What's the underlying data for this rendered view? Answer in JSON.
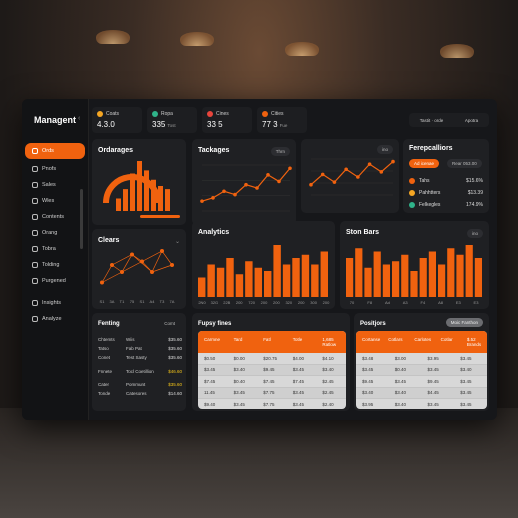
{
  "app": {
    "brand": "Managent"
  },
  "sidebar": {
    "items": [
      {
        "label": "Ords",
        "active": true
      },
      {
        "label": "Pnofs"
      },
      {
        "label": "Sales"
      },
      {
        "label": "Wles"
      },
      {
        "label": "Contents"
      },
      {
        "label": "Orang"
      },
      {
        "label": "Tobra"
      },
      {
        "label": "Tolding"
      },
      {
        "label": "Purgened"
      },
      {
        "label": "Insights"
      },
      {
        "label": "Analyze"
      }
    ]
  },
  "stats": [
    {
      "label": "Coats",
      "value": "4.3.0",
      "sub": "",
      "color": "#f5a623"
    },
    {
      "label": "Ropa",
      "value": "335",
      "sub": "Tost",
      "color": "#2fb38a"
    },
    {
      "label": "Cines",
      "value": "33 5",
      "sub": "",
      "color": "#e8453c"
    },
    {
      "label": "Cities",
      "value": "77 3",
      "sub": "Fue",
      "color": "#f0620f"
    }
  ],
  "user": {
    "left": "Tastit · orde",
    "right": "Apotra"
  },
  "cards": {
    "orderages": {
      "title": "Ordarages"
    },
    "trackages": {
      "title": "Tackages",
      "pill": "Thrn"
    },
    "chart3": {
      "pill": "ino"
    },
    "forecasts": {
      "title": "Ferepcalliors",
      "btn_primary": "Ad icenae",
      "btn_secondary": "Rear 053.00",
      "rows": [
        {
          "label": "Tahs",
          "value": "$15.6%",
          "color": "#f0620f"
        },
        {
          "label": "Pahhtters",
          "value": "$13.39",
          "color": "#f5a623"
        },
        {
          "label": "Felkegles",
          "value": "174.9%",
          "color": "#2fb38a"
        }
      ]
    },
    "clears": {
      "title": "Clears",
      "axis": [
        "S1",
        "3A",
        "T1",
        "75",
        "S1",
        "A4",
        "T3",
        "7A"
      ]
    },
    "analytics": {
      "title": "Analytics",
      "axis": [
        "2N0",
        "32G",
        "22B",
        "200",
        "720",
        "200",
        "200",
        "320",
        "200",
        "300",
        "200"
      ]
    },
    "stonbars": {
      "title": "Ston Bars",
      "pill": "ino",
      "axis": [
        "70",
        "F8",
        "Ad",
        "A3",
        "F4",
        "A8",
        "E3",
        "E3"
      ]
    },
    "fenting": {
      "title": "Fenting",
      "pill": "Comt",
      "rows": [
        [
          "Chtemts",
          "Wiis",
          "$35.60"
        ],
        [
          "Tatso",
          "Fab Pat",
          "$35.60"
        ],
        [
          "Conet",
          "Test Sasty",
          "$35.60"
        ],
        [
          "Fnnete",
          "Tocl Coetillion",
          "$46.60"
        ],
        [
          "Cater",
          "Pommunt",
          "$35.60"
        ],
        [
          "Tonde",
          "Catesores",
          "$14.60"
        ]
      ]
    },
    "fupsy": {
      "title": "Fupsy fines",
      "head": [
        "Carmne",
        "Tard",
        "Fatl",
        "Totle",
        "1,685 Ratlow"
      ],
      "rows": [
        [
          "$0.50",
          "$0.00",
          "$20.75",
          "$4.00",
          "$4.10"
        ],
        [
          "$3.45",
          "$3.40",
          "$9.45",
          "$3.45",
          "$3.40"
        ],
        [
          "$7.45",
          "$0.40",
          "$7.45",
          "$7.45",
          "$2.45"
        ],
        [
          "11.45",
          "$3.45",
          "$7.75",
          "$3.45",
          "$2.45"
        ],
        [
          "$9.40",
          "$3.45",
          "$7.75",
          "$3.45",
          "$2.40"
        ]
      ]
    },
    "positions": {
      "title": "Positjors",
      "pill": "Moic Fanthon",
      "head": [
        "Cortanse",
        "Cotlars",
        "Carlotes",
        "Cotlar",
        "$.52 Brands"
      ],
      "rows": [
        [
          "$3.48",
          "$3.00",
          "$3.95",
          "$3.45"
        ],
        [
          "$3.45",
          "$0.40",
          "$3.45",
          "$3.40"
        ],
        [
          "$9.45",
          "$3.45",
          "$9.45",
          "$3.45"
        ],
        [
          "$3.40",
          "$3.40",
          "$4.45",
          "$3.45"
        ],
        [
          "$3.95",
          "$3.40",
          "$3.45",
          "$3.45"
        ]
      ]
    }
  },
  "chart_data": [
    {
      "type": "bar",
      "name": "orderages",
      "values": [
        4,
        7,
        12,
        16,
        13,
        10,
        8,
        7
      ]
    },
    {
      "type": "line",
      "name": "trackages",
      "values": [
        3,
        4,
        6,
        5,
        8,
        7,
        11,
        9,
        13
      ]
    },
    {
      "type": "line",
      "name": "chart3",
      "values": [
        4,
        8,
        5,
        10,
        7,
        12,
        9,
        13
      ]
    },
    {
      "type": "scatter",
      "name": "clears",
      "values": [
        3,
        8,
        6,
        11,
        9,
        6,
        12,
        8
      ]
    },
    {
      "type": "bar",
      "name": "analytics",
      "values": [
        6,
        10,
        9,
        12,
        7,
        11,
        9,
        8,
        16,
        10,
        12,
        13,
        10,
        14
      ]
    },
    {
      "type": "bar",
      "name": "stonbars",
      "values": [
        12,
        15,
        9,
        14,
        10,
        11,
        13,
        8,
        12,
        14,
        10,
        15,
        13,
        16,
        12
      ]
    }
  ]
}
